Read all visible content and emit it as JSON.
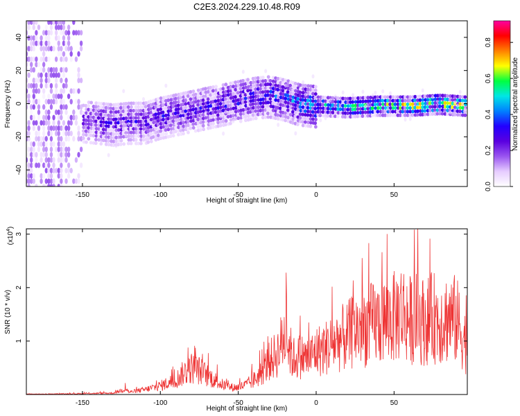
{
  "page_title": "C2E3.2024.229.10.48.R09",
  "chart_data": [
    {
      "type": "heatmap",
      "title": "C2E3.2024.229.10.48.R09",
      "xlabel": "Height of straight line (km)",
      "ylabel": "Frequency (Hz)",
      "xlim": [
        -186,
        97
      ],
      "ylim": [
        -50,
        50
      ],
      "x_ticks": [
        -150,
        -100,
        -50,
        0,
        50
      ],
      "x_tick_labels": [
        "-150",
        "-100",
        "-50",
        "0",
        "50"
      ],
      "y_ticks": [
        -40,
        -20,
        0,
        20,
        40
      ],
      "y_tick_labels": [
        "-40",
        "-20",
        "0",
        "20",
        "40"
      ],
      "colorbar": {
        "label": "Normalized spectral amplitude",
        "range": [
          0,
          0.92
        ],
        "ticks": [
          0.0,
          0.2,
          0.4,
          0.6,
          0.8
        ],
        "tick_labels": [
          "0.0",
          "0.2",
          "0.4",
          "0.6",
          "0.8"
        ],
        "colormap": [
          "#ffffff",
          "#e6ccff",
          "#9a55f0",
          "#5a00e0",
          "#2200ff",
          "#0080ff",
          "#00e6e6",
          "#00ff40",
          "#ffff00",
          "#ff8000",
          "#ff0000",
          "#ff00a0"
        ]
      },
      "ridge": {
        "x": [
          -150,
          -140,
          -130,
          -120,
          -110,
          -100,
          -90,
          -80,
          -70,
          -60,
          -50,
          -40,
          -30,
          -20,
          -10,
          0,
          20,
          40,
          60,
          80,
          95
        ],
        "freq": [
          -10,
          -11,
          -12,
          -11,
          -11,
          -8,
          -6,
          -4,
          -2,
          0,
          2,
          4,
          5,
          3,
          0,
          -1,
          -2,
          -1,
          -1,
          0,
          -1
        ],
        "amplitude": [
          0.25,
          0.3,
          0.3,
          0.3,
          0.3,
          0.32,
          0.3,
          0.3,
          0.32,
          0.35,
          0.35,
          0.35,
          0.4,
          0.4,
          0.45,
          0.5,
          0.6,
          0.7,
          0.75,
          0.8,
          0.7
        ]
      },
      "grid": false
    },
    {
      "type": "line",
      "xlabel": "Height of straight line (km)",
      "ylabel": "SNR (10 * v/v)",
      "ylabel_exponent": "(x10^4)",
      "scale_text": "(x10",
      "scale_power": "4",
      "scale_close": ")",
      "xlim": [
        -186,
        97
      ],
      "ylim": [
        0,
        3.1
      ],
      "x_ticks": [
        -150,
        -100,
        -50,
        0,
        50
      ],
      "x_tick_labels": [
        "-150",
        "-100",
        "-50",
        "0",
        "50"
      ],
      "y_ticks": [
        1,
        2,
        3
      ],
      "y_tick_labels": [
        "1",
        "2",
        "3"
      ],
      "series": [
        {
          "color": "#ee3333",
          "x": [
            -186,
            -170,
            -150,
            -130,
            -122,
            -120,
            -110,
            -100,
            -90,
            -85,
            -80,
            -75,
            -70,
            -65,
            -60,
            -55,
            -50,
            -45,
            -40,
            -35,
            -30,
            -25,
            -20,
            -15,
            -10,
            -5,
            0,
            5,
            10,
            15,
            20,
            25,
            30,
            35,
            40,
            45,
            50,
            55,
            60,
            65,
            70,
            75,
            80,
            85,
            90,
            97
          ],
          "values": [
            0.01,
            0.01,
            0.02,
            0.03,
            0.12,
            0.05,
            0.1,
            0.18,
            0.3,
            0.45,
            0.55,
            0.5,
            0.4,
            0.3,
            0.2,
            0.15,
            0.15,
            0.2,
            0.3,
            0.45,
            0.7,
            0.85,
            1.25,
            0.75,
            0.8,
            0.75,
            0.9,
            0.95,
            1.05,
            1.15,
            1.2,
            1.35,
            1.4,
            1.45,
            1.5,
            1.55,
            1.6,
            1.75,
            1.55,
            1.6,
            1.5,
            1.6,
            1.55,
            1.6,
            1.55,
            1.0
          ]
        }
      ],
      "grid": false
    }
  ]
}
